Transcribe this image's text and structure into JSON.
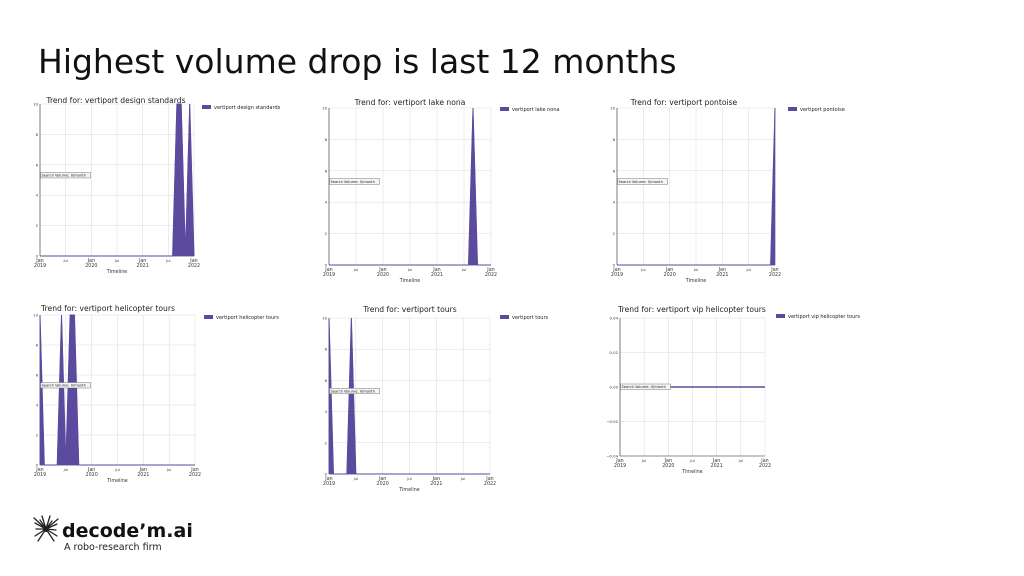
{
  "slide": {
    "title": "Highest volume drop is last 12 months"
  },
  "logo": {
    "name": "decode’m.ai",
    "tagline": "A robo-research firm"
  },
  "colors": {
    "series": "#5b4a9e",
    "grid": "#d9d9d9",
    "axis": "#333333"
  },
  "chart_data": [
    {
      "type": "area",
      "title": "Trend for: vertiport design standards",
      "legend": "vertiport design standards",
      "annotation": "Search Volume: 0/month",
      "xlabel": "Timeline",
      "x": [
        "2019-01",
        "2019-02",
        "2019-03",
        "2019-04",
        "2019-05",
        "2019-06",
        "2019-07",
        "2019-08",
        "2019-09",
        "2019-10",
        "2019-11",
        "2019-12",
        "2020-01",
        "2020-02",
        "2020-03",
        "2020-04",
        "2020-05",
        "2020-06",
        "2020-07",
        "2020-08",
        "2020-09",
        "2020-10",
        "2020-11",
        "2020-12",
        "2021-01",
        "2021-02",
        "2021-03",
        "2021-04",
        "2021-05",
        "2021-06",
        "2021-07",
        "2021-08",
        "2021-09",
        "2021-10",
        "2021-11",
        "2021-12",
        "2022-01"
      ],
      "values": [
        0,
        0,
        0,
        0,
        0,
        0,
        0,
        0,
        0,
        0,
        0,
        0,
        0,
        0,
        0,
        0,
        0,
        0,
        0,
        0,
        0,
        0,
        0,
        0,
        0,
        0,
        0,
        0,
        0,
        0,
        0,
        0,
        10,
        10,
        0,
        10,
        0
      ],
      "xticks": [
        "Jan\n2019",
        "Jul",
        "Jan\n2020",
        "Jul",
        "Jan\n2021",
        "Jul",
        "Jan\n2022"
      ],
      "yticks": [
        "0",
        "2",
        "4",
        "6",
        "8",
        "10"
      ],
      "ylim": [
        0,
        10
      ]
    },
    {
      "type": "area",
      "title": "Trend for: vertiport lake nona",
      "legend": "vertiport lake nona",
      "annotation": "Search Volume: 0/month",
      "xlabel": "Timeline",
      "x": [
        "2019-01",
        "2019-02",
        "2019-03",
        "2019-04",
        "2019-05",
        "2019-06",
        "2019-07",
        "2019-08",
        "2019-09",
        "2019-10",
        "2019-11",
        "2019-12",
        "2020-01",
        "2020-02",
        "2020-03",
        "2020-04",
        "2020-05",
        "2020-06",
        "2020-07",
        "2020-08",
        "2020-09",
        "2020-10",
        "2020-11",
        "2020-12",
        "2021-01",
        "2021-02",
        "2021-03",
        "2021-04",
        "2021-05",
        "2021-06",
        "2021-07",
        "2021-08",
        "2021-09",
        "2021-10",
        "2021-11",
        "2021-12",
        "2022-01"
      ],
      "values": [
        0,
        0,
        0,
        0,
        0,
        0,
        0,
        0,
        0,
        0,
        0,
        0,
        0,
        0,
        0,
        0,
        0,
        0,
        0,
        0,
        0,
        0,
        0,
        0,
        0,
        0,
        0,
        0,
        0,
        0,
        0,
        0,
        10,
        0,
        0,
        0,
        0
      ],
      "xticks": [
        "Jan\n2019",
        "Jul",
        "Jan\n2020",
        "Jul",
        "Jan\n2021",
        "Jul",
        "Jan\n2022"
      ],
      "yticks": [
        "0",
        "2",
        "4",
        "6",
        "8",
        "10"
      ],
      "ylim": [
        0,
        10
      ]
    },
    {
      "type": "area",
      "title": "Trend for: vertiport pontoise",
      "legend": "vertiport pontoise",
      "annotation": "Search Volume: 0/month",
      "xlabel": "Timeline",
      "x": [
        "2019-01",
        "2019-02",
        "2019-03",
        "2019-04",
        "2019-05",
        "2019-06",
        "2019-07",
        "2019-08",
        "2019-09",
        "2019-10",
        "2019-11",
        "2019-12",
        "2020-01",
        "2020-02",
        "2020-03",
        "2020-04",
        "2020-05",
        "2020-06",
        "2020-07",
        "2020-08",
        "2020-09",
        "2020-10",
        "2020-11",
        "2020-12",
        "2021-01",
        "2021-02",
        "2021-03",
        "2021-04",
        "2021-05",
        "2021-06",
        "2021-07",
        "2021-08",
        "2021-09",
        "2021-10",
        "2021-11",
        "2021-12",
        "2022-01"
      ],
      "values": [
        0,
        0,
        0,
        0,
        0,
        0,
        0,
        0,
        0,
        0,
        0,
        0,
        0,
        0,
        0,
        0,
        0,
        0,
        0,
        0,
        0,
        0,
        0,
        0,
        0,
        0,
        0,
        0,
        0,
        0,
        0,
        0,
        0,
        0,
        0,
        0,
        10
      ],
      "xticks": [
        "Jan\n2019",
        "Jul",
        "Jan\n2020",
        "Jul",
        "Jan\n2021",
        "Jul",
        "Jan\n2022"
      ],
      "yticks": [
        "0",
        "2",
        "4",
        "6",
        "8",
        "10"
      ],
      "ylim": [
        0,
        10
      ]
    },
    {
      "type": "area",
      "title": "Trend for: vertiport helicopter tours",
      "legend": "vertiport helicopter tours",
      "annotation": "Search Volume: 0/month",
      "xlabel": "Timeline",
      "x": [
        "2019-01",
        "2019-02",
        "2019-03",
        "2019-04",
        "2019-05",
        "2019-06",
        "2019-07",
        "2019-08",
        "2019-09",
        "2019-10",
        "2019-11",
        "2019-12",
        "2020-01",
        "2020-02",
        "2020-03",
        "2020-04",
        "2020-05",
        "2020-06",
        "2020-07",
        "2020-08",
        "2020-09",
        "2020-10",
        "2020-11",
        "2020-12",
        "2021-01",
        "2021-02",
        "2021-03",
        "2021-04",
        "2021-05",
        "2021-06",
        "2021-07",
        "2021-08",
        "2021-09",
        "2021-10",
        "2021-11",
        "2021-12",
        "2022-01"
      ],
      "values": [
        10,
        0,
        0,
        0,
        0,
        10,
        0,
        10,
        10,
        0,
        0,
        0,
        0,
        0,
        0,
        0,
        0,
        0,
        0,
        0,
        0,
        0,
        0,
        0,
        0,
        0,
        0,
        0,
        0,
        0,
        0,
        0,
        0,
        0,
        0,
        0,
        0
      ],
      "xticks": [
        "Jan\n2019",
        "Jul",
        "Jan\n2020",
        "Jul",
        "Jan\n2021",
        "Jul",
        "Jan\n2022"
      ],
      "yticks": [
        "0",
        "2",
        "4",
        "6",
        "8",
        "10"
      ],
      "ylim": [
        0,
        10
      ]
    },
    {
      "type": "area",
      "title": "Trend for: vertiport tours",
      "legend": "vertiport tours",
      "annotation": "Search Volume: 0/month",
      "xlabel": "Timeline",
      "x": [
        "2019-01",
        "2019-02",
        "2019-03",
        "2019-04",
        "2019-05",
        "2019-06",
        "2019-07",
        "2019-08",
        "2019-09",
        "2019-10",
        "2019-11",
        "2019-12",
        "2020-01",
        "2020-02",
        "2020-03",
        "2020-04",
        "2020-05",
        "2020-06",
        "2020-07",
        "2020-08",
        "2020-09",
        "2020-10",
        "2020-11",
        "2020-12",
        "2021-01",
        "2021-02",
        "2021-03",
        "2021-04",
        "2021-05",
        "2021-06",
        "2021-07",
        "2021-08",
        "2021-09",
        "2021-10",
        "2021-11",
        "2021-12",
        "2022-01"
      ],
      "values": [
        10,
        0,
        0,
        0,
        0,
        10,
        0,
        0,
        0,
        0,
        0,
        0,
        0,
        0,
        0,
        0,
        0,
        0,
        0,
        0,
        0,
        0,
        0,
        0,
        0,
        0,
        0,
        0,
        0,
        0,
        0,
        0,
        0,
        0,
        0,
        0,
        0
      ],
      "xticks": [
        "Jan\n2019",
        "Jul",
        "Jan\n2020",
        "Jul",
        "Jan\n2021",
        "Jul",
        "Jan\n2022"
      ],
      "yticks": [
        "0",
        "2",
        "4",
        "6",
        "8",
        "10"
      ],
      "ylim": [
        0,
        10
      ]
    },
    {
      "type": "line",
      "title": "Trend for: vertiport vip helicopter tours",
      "legend": "vertiport vip helicopter tours",
      "annotation": "Search Volume: 0/month",
      "xlabel": "Timeline",
      "x": [
        "2019-01",
        "2019-02",
        "2019-03",
        "2019-04",
        "2019-05",
        "2019-06",
        "2019-07",
        "2019-08",
        "2019-09",
        "2019-10",
        "2019-11",
        "2019-12",
        "2020-01",
        "2020-02",
        "2020-03",
        "2020-04",
        "2020-05",
        "2020-06",
        "2020-07",
        "2020-08",
        "2020-09",
        "2020-10",
        "2020-11",
        "2020-12",
        "2021-01",
        "2021-02",
        "2021-03",
        "2021-04",
        "2021-05",
        "2021-06",
        "2021-07",
        "2021-08",
        "2021-09",
        "2021-10",
        "2021-11",
        "2021-12",
        "2022-01"
      ],
      "values": [
        0,
        0,
        0,
        0,
        0,
        0,
        0,
        0,
        0,
        0,
        0,
        0,
        0,
        0,
        0,
        0,
        0,
        0,
        0,
        0,
        0,
        0,
        0,
        0,
        0,
        0,
        0,
        0,
        0,
        0,
        0,
        0,
        0,
        0,
        0,
        0,
        0
      ],
      "xticks": [
        "Jan\n2019",
        "Jul",
        "Jan\n2020",
        "Jul",
        "Jan\n2021",
        "Jul",
        "Jan\n2022"
      ],
      "yticks": [
        "−0.04",
        "−0.02",
        "0.00",
        "0.02",
        "0.04"
      ],
      "ylim": [
        -0.05,
        0.05
      ]
    }
  ]
}
